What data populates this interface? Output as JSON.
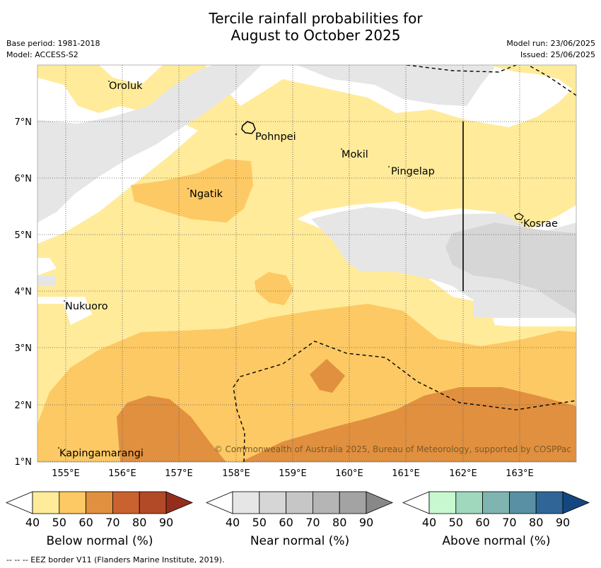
{
  "title_line1": "Tercile rainfall probabilities for",
  "title_line2": "August to October 2025",
  "meta_left": [
    "Base period: 1981-2018",
    "Model: ACCESS-S2"
  ],
  "meta_right": [
    "Model run: 23/06/2025",
    "Issued: 25/06/2025"
  ],
  "copyright": "© Commonwealth of Australia 2025, Bureau of Meteorology, supported by COSPPac",
  "eez_note": "--  --  -- EEZ border V11 (Flanders Marine Institute, 2019).",
  "x_ticks": [
    "155°E",
    "156°E",
    "157°E",
    "158°E",
    "159°E",
    "160°E",
    "161°E",
    "162°E",
    "163°E"
  ],
  "y_ticks": [
    "7°N",
    "6°N",
    "5°N",
    "4°N",
    "3°N",
    "2°N",
    "1°N"
  ],
  "places": [
    {
      "name": "Oroluk"
    },
    {
      "name": "Pohnpei"
    },
    {
      "name": "Mokil"
    },
    {
      "name": "Pingelap"
    },
    {
      "name": "Ngatik"
    },
    {
      "name": "Kosrae"
    },
    {
      "name": "Nukuoro"
    },
    {
      "name": "Kapingamarangi"
    }
  ],
  "colorbars": [
    {
      "label": "Below normal (%)",
      "ticks": [
        "40",
        "50",
        "60",
        "70",
        "80",
        "90"
      ],
      "colors": [
        "#ffffff",
        "#ffeb9a",
        "#fdc964",
        "#e1903f",
        "#c9622e",
        "#b24a28",
        "#952d1c"
      ]
    },
    {
      "label": "Near normal (%)",
      "ticks": [
        "40",
        "50",
        "60",
        "70",
        "80",
        "90"
      ],
      "colors": [
        "#ffffff",
        "#e6e6e6",
        "#d6d6d6",
        "#c6c6c6",
        "#b5b5b5",
        "#a3a3a3",
        "#888888"
      ]
    },
    {
      "label": "Above normal (%)",
      "ticks": [
        "40",
        "50",
        "60",
        "70",
        "80",
        "90"
      ],
      "colors": [
        "#ffffff",
        "#c8f8cf",
        "#9fd8bd",
        "#80b4b0",
        "#5990a3",
        "#2f6597",
        "#14477f"
      ]
    }
  ]
}
